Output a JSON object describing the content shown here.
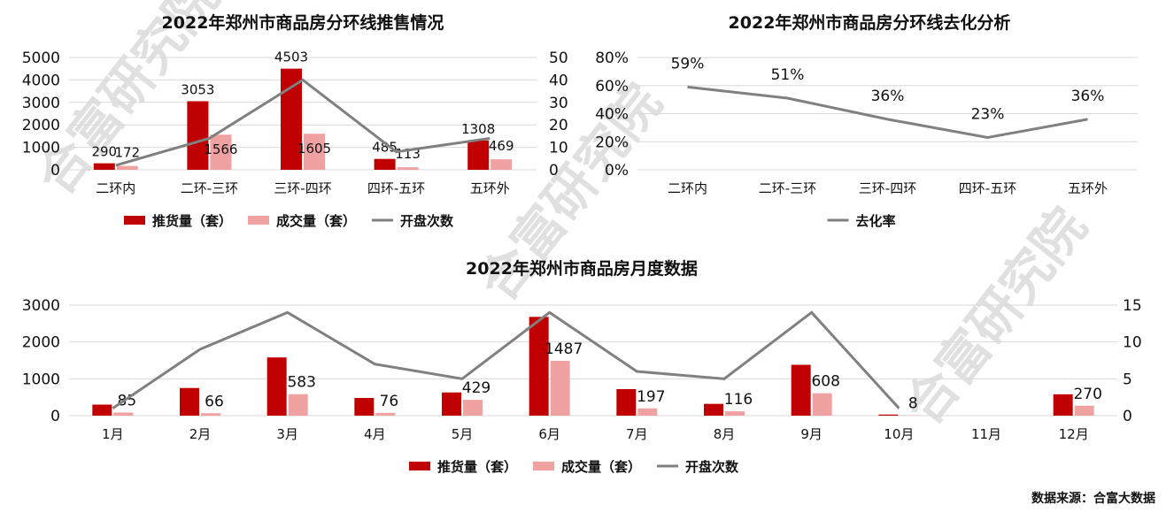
{
  "colors": {
    "supply": "#c00000",
    "deal": "#f0a1a1",
    "openings": "#808080",
    "rate": "#808080"
  },
  "watermark": "合富研究院",
  "source": "数据来源：合富大数据",
  "chart_data": [
    {
      "type": "bar",
      "title": "2022年郑州市商品房分环线推售情况",
      "categories": [
        "二环内",
        "二环-三环",
        "三环-四环",
        "四环-五环",
        "五环外"
      ],
      "series": [
        {
          "name": "推货量（套）",
          "kind": "bar",
          "axis": "left",
          "values": [
            290,
            3053,
            4503,
            485,
            1308
          ]
        },
        {
          "name": "成交量（套）",
          "kind": "bar",
          "axis": "left",
          "values": [
            172,
            1566,
            1605,
            113,
            469
          ]
        },
        {
          "name": "开盘次数",
          "kind": "line",
          "axis": "right",
          "values": [
            2,
            14,
            40,
            8,
            14
          ]
        }
      ],
      "ylim": [
        0,
        5000
      ],
      "yticks": [
        "0",
        "1000",
        "2000",
        "3000",
        "4000",
        "5000"
      ],
      "y2lim": [
        0,
        50
      ],
      "y2ticks": [
        "0",
        "10",
        "20",
        "30",
        "40",
        "50"
      ],
      "legend": "bottom"
    },
    {
      "type": "line",
      "title": "2022年郑州市商品房分环线去化分析",
      "categories": [
        "二环内",
        "二环-三环",
        "三环-四环",
        "四环-五环",
        "五环外"
      ],
      "series": [
        {
          "name": "去化率",
          "values": [
            59,
            51,
            36,
            23,
            36
          ],
          "labels": [
            "59%",
            "51%",
            "36%",
            "23%",
            "36%"
          ]
        }
      ],
      "ylim": [
        0,
        80
      ],
      "yticks": [
        "0%",
        "20%",
        "40%",
        "60%",
        "80%"
      ],
      "legend": "bottom"
    },
    {
      "type": "bar",
      "title": "2022年郑州市商品房月度数据",
      "categories": [
        "1月",
        "2月",
        "3月",
        "4月",
        "5月",
        "6月",
        "7月",
        "8月",
        "9月",
        "10月",
        "11月",
        "12月"
      ],
      "series": [
        {
          "name": "推货量（套）",
          "kind": "bar",
          "axis": "left",
          "values": [
            300,
            750,
            1580,
            480,
            630,
            2680,
            720,
            320,
            1380,
            30,
            0,
            580
          ]
        },
        {
          "name": "成交量（套）",
          "kind": "bar",
          "axis": "left",
          "values": [
            85,
            66,
            583,
            76,
            429,
            1487,
            197,
            116,
            608,
            8,
            0,
            270
          ]
        },
        {
          "name": "开盘次数",
          "kind": "line",
          "axis": "right",
          "values": [
            1,
            9,
            14,
            7,
            5,
            14,
            6,
            5,
            14,
            1,
            null,
            null
          ]
        }
      ],
      "deal_labels": [
        "85",
        "66",
        "583",
        "76",
        "429",
        "1487",
        "197",
        "116",
        "608",
        "8",
        "",
        "270"
      ],
      "ylim": [
        0,
        3000
      ],
      "yticks": [
        "0",
        "1000",
        "2000",
        "3000"
      ],
      "y2lim": [
        0,
        15
      ],
      "y2ticks": [
        "0",
        "5",
        "10",
        "15"
      ],
      "legend": "bottom"
    }
  ]
}
